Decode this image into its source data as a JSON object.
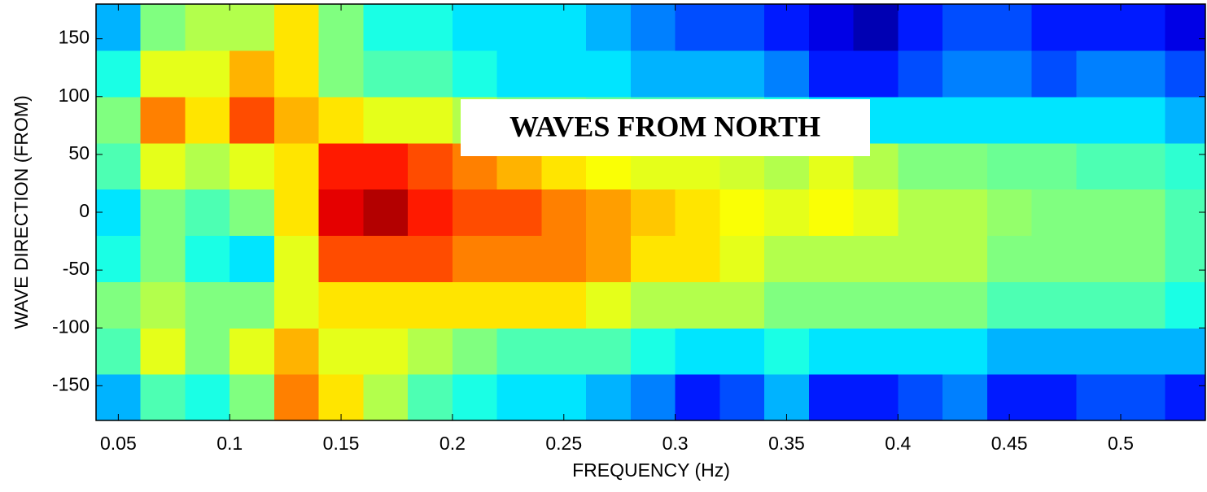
{
  "chart_data": {
    "type": "heatmap",
    "xlabel": "FREQUENCY (Hz)",
    "ylabel": "WAVE DIRECTION (FROM)",
    "annotation": "WAVES FROM NORTH",
    "colormap": "jet",
    "zlim": [
      0,
      1
    ],
    "xbins": [
      0.04,
      0.06,
      0.08,
      0.1,
      0.12,
      0.14,
      0.16,
      0.18,
      0.2,
      0.22,
      0.24,
      0.26,
      0.28,
      0.3,
      0.32,
      0.34,
      0.36,
      0.38,
      0.4,
      0.42,
      0.44,
      0.46,
      0.48,
      0.5,
      0.52,
      0.54
    ],
    "ybins": [
      -180,
      -140,
      -100,
      -60,
      -20,
      20,
      60,
      100,
      140,
      180
    ],
    "values": [
      [
        0.3,
        0.45,
        0.5,
        0.4,
        0.35,
        0.45,
        0.5,
        0.4,
        0.3
      ],
      [
        0.45,
        0.6,
        0.55,
        0.5,
        0.5,
        0.6,
        0.75,
        0.6,
        0.5
      ],
      [
        0.4,
        0.5,
        0.5,
        0.4,
        0.45,
        0.55,
        0.65,
        0.6,
        0.55
      ],
      [
        0.5,
        0.6,
        0.5,
        0.35,
        0.5,
        0.6,
        0.8,
        0.7,
        0.55
      ],
      [
        0.75,
        0.7,
        0.6,
        0.6,
        0.65,
        0.65,
        0.7,
        0.65,
        0.65
      ],
      [
        0.65,
        0.6,
        0.65,
        0.8,
        0.9,
        0.85,
        0.65,
        0.5,
        0.5
      ],
      [
        0.55,
        0.6,
        0.65,
        0.8,
        0.95,
        0.85,
        0.6,
        0.45,
        0.4
      ],
      [
        0.45,
        0.55,
        0.65,
        0.8,
        0.85,
        0.8,
        0.6,
        0.45,
        0.4
      ],
      [
        0.4,
        0.5,
        0.65,
        0.75,
        0.8,
        0.75,
        0.55,
        0.4,
        0.35
      ],
      [
        0.35,
        0.45,
        0.65,
        0.75,
        0.8,
        0.7,
        0.5,
        0.35,
        0.35
      ],
      [
        0.35,
        0.45,
        0.65,
        0.75,
        0.75,
        0.65,
        0.5,
        0.35,
        0.35
      ],
      [
        0.3,
        0.45,
        0.6,
        0.72,
        0.72,
        0.62,
        0.48,
        0.35,
        0.3
      ],
      [
        0.25,
        0.4,
        0.55,
        0.65,
        0.68,
        0.6,
        0.45,
        0.3,
        0.25
      ],
      [
        0.15,
        0.35,
        0.55,
        0.65,
        0.65,
        0.6,
        0.45,
        0.3,
        0.2
      ],
      [
        0.2,
        0.35,
        0.55,
        0.6,
        0.62,
        0.58,
        0.45,
        0.3,
        0.2
      ],
      [
        0.3,
        0.4,
        0.5,
        0.55,
        0.6,
        0.55,
        0.4,
        0.25,
        0.15
      ],
      [
        0.15,
        0.35,
        0.5,
        0.55,
        0.62,
        0.6,
        0.35,
        0.15,
        0.1
      ],
      [
        0.15,
        0.35,
        0.5,
        0.55,
        0.6,
        0.55,
        0.35,
        0.15,
        0.05
      ],
      [
        0.2,
        0.35,
        0.5,
        0.55,
        0.55,
        0.5,
        0.35,
        0.2,
        0.15
      ],
      [
        0.25,
        0.35,
        0.5,
        0.55,
        0.55,
        0.5,
        0.35,
        0.25,
        0.2
      ],
      [
        0.15,
        0.3,
        0.45,
        0.5,
        0.52,
        0.48,
        0.35,
        0.25,
        0.2
      ],
      [
        0.15,
        0.3,
        0.45,
        0.5,
        0.5,
        0.48,
        0.35,
        0.2,
        0.15
      ],
      [
        0.2,
        0.3,
        0.45,
        0.5,
        0.5,
        0.45,
        0.35,
        0.25,
        0.15
      ],
      [
        0.2,
        0.3,
        0.45,
        0.5,
        0.5,
        0.45,
        0.35,
        0.25,
        0.15
      ],
      [
        0.15,
        0.3,
        0.4,
        0.45,
        0.45,
        0.42,
        0.3,
        0.2,
        0.1
      ]
    ],
    "xlim": [
      0.04,
      0.538
    ],
    "xticks": [
      0.05,
      0.1,
      0.15,
      0.2,
      0.25,
      0.3,
      0.35,
      0.4,
      0.45,
      0.5
    ],
    "ylim": [
      -180,
      180
    ],
    "yticks": [
      -150,
      -100,
      -50,
      0,
      50,
      100,
      150
    ]
  }
}
